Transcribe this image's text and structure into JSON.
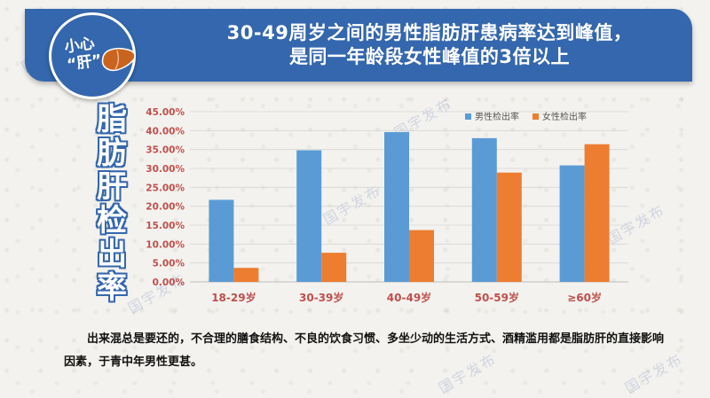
{
  "banner": {
    "title_line1": "30-49周岁之间的男性脂肪肝患病率达到峰值，",
    "title_line2": "是同一年龄段女性峰值的3倍以上"
  },
  "badge": {
    "line1": "小心",
    "line2": "“肝”"
  },
  "side_title": "脂肪肝检出率",
  "watermark": "国宇发布",
  "caption": "出来混总是要还的，不合理的膳食结构、不良的饮食习惯、多坐少动的生活方式、酒精滥用都是脂肪肝的直接影响因素，于青中年男性更甚。",
  "colors": {
    "male": "#5b9bd5",
    "female": "#ed7d31",
    "banner": "#3467ad",
    "tick": "#c0504d",
    "liver": "#c9641e"
  },
  "chart_data": {
    "type": "bar",
    "categories": [
      "18-29岁",
      "30-39岁",
      "40-49岁",
      "50-59岁",
      "≥60岁"
    ],
    "series": [
      {
        "name": "男性检出率",
        "values": [
          21.7,
          34.8,
          39.6,
          38.0,
          30.8
        ]
      },
      {
        "name": "女性检出率",
        "values": [
          3.7,
          7.7,
          13.7,
          28.9,
          36.4
        ]
      }
    ],
    "ylim": [
      0,
      45
    ],
    "yticks": [
      "0.00%",
      "5.00%",
      "10.00%",
      "15.00%",
      "20.00%",
      "25.00%",
      "30.00%",
      "35.00%",
      "40.00%",
      "45.00%"
    ],
    "grid": true,
    "legend": "top-right"
  }
}
